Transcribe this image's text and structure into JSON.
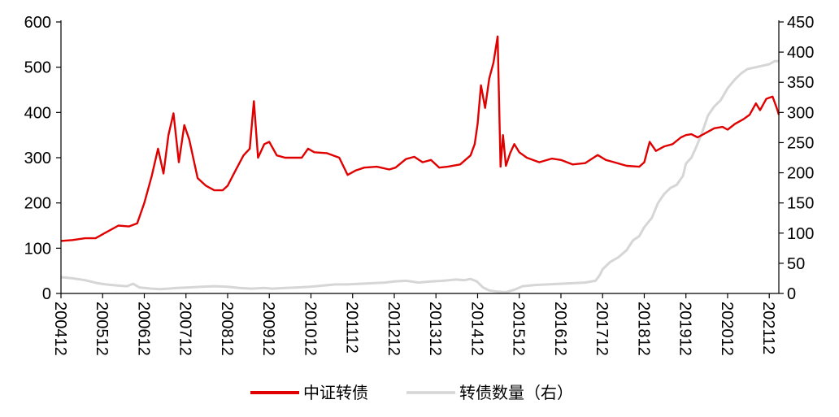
{
  "chart_data": {
    "type": "line",
    "title": "",
    "xlabel": "",
    "ylabel": "",
    "y2label": "",
    "x_ticks": [
      "200412",
      "200512",
      "200612",
      "200712",
      "200812",
      "200912",
      "201012",
      "201112",
      "201212",
      "201312",
      "201412",
      "201512",
      "201612",
      "201712",
      "201812",
      "201912",
      "202012",
      "202112"
    ],
    "ylim": [
      0,
      600
    ],
    "yticks": [
      0,
      100,
      200,
      300,
      400,
      500,
      600
    ],
    "y2lim": [
      0,
      450
    ],
    "y2ticks": [
      0,
      50,
      100,
      150,
      200,
      250,
      300,
      350,
      400,
      450
    ],
    "grid": false,
    "legend_position": "bottom",
    "series": [
      {
        "name": "中证转债",
        "axis": "left",
        "color": "#e00000",
        "points": [
          [
            2004.92,
            116
          ],
          [
            2005.2,
            118
          ],
          [
            2005.5,
            122
          ],
          [
            2005.75,
            122
          ],
          [
            2006.0,
            135
          ],
          [
            2006.3,
            150
          ],
          [
            2006.55,
            148
          ],
          [
            2006.75,
            155
          ],
          [
            2006.92,
            200
          ],
          [
            2007.1,
            260
          ],
          [
            2007.25,
            320
          ],
          [
            2007.38,
            265
          ],
          [
            2007.5,
            350
          ],
          [
            2007.62,
            398
          ],
          [
            2007.75,
            290
          ],
          [
            2007.88,
            372
          ],
          [
            2008.0,
            340
          ],
          [
            2008.2,
            255
          ],
          [
            2008.4,
            238
          ],
          [
            2008.6,
            228
          ],
          [
            2008.8,
            228
          ],
          [
            2008.92,
            238
          ],
          [
            2009.1,
            270
          ],
          [
            2009.3,
            305
          ],
          [
            2009.45,
            320
          ],
          [
            2009.55,
            425
          ],
          [
            2009.65,
            300
          ],
          [
            2009.8,
            330
          ],
          [
            2009.92,
            335
          ],
          [
            2010.1,
            305
          ],
          [
            2010.3,
            300
          ],
          [
            2010.5,
            300
          ],
          [
            2010.7,
            300
          ],
          [
            2010.85,
            320
          ],
          [
            2011.0,
            312
          ],
          [
            2011.3,
            310
          ],
          [
            2011.6,
            300
          ],
          [
            2011.8,
            262
          ],
          [
            2012.0,
            272
          ],
          [
            2012.2,
            278
          ],
          [
            2012.5,
            280
          ],
          [
            2012.8,
            274
          ],
          [
            2012.95,
            278
          ],
          [
            2013.2,
            297
          ],
          [
            2013.4,
            302
          ],
          [
            2013.6,
            290
          ],
          [
            2013.8,
            295
          ],
          [
            2014.0,
            278
          ],
          [
            2014.2,
            280
          ],
          [
            2014.5,
            285
          ],
          [
            2014.75,
            305
          ],
          [
            2014.85,
            330
          ],
          [
            2014.92,
            375
          ],
          [
            2015.0,
            460
          ],
          [
            2015.1,
            410
          ],
          [
            2015.2,
            475
          ],
          [
            2015.3,
            510
          ],
          [
            2015.4,
            568
          ],
          [
            2015.47,
            280
          ],
          [
            2015.53,
            350
          ],
          [
            2015.6,
            282
          ],
          [
            2015.7,
            310
          ],
          [
            2015.8,
            330
          ],
          [
            2015.92,
            312
          ],
          [
            2016.1,
            300
          ],
          [
            2016.4,
            290
          ],
          [
            2016.7,
            298
          ],
          [
            2016.92,
            295
          ],
          [
            2017.2,
            285
          ],
          [
            2017.5,
            288
          ],
          [
            2017.8,
            306
          ],
          [
            2018.0,
            295
          ],
          [
            2018.2,
            290
          ],
          [
            2018.5,
            282
          ],
          [
            2018.8,
            280
          ],
          [
            2018.92,
            290
          ],
          [
            2019.05,
            335
          ],
          [
            2019.2,
            315
          ],
          [
            2019.4,
            325
          ],
          [
            2019.6,
            330
          ],
          [
            2019.8,
            345
          ],
          [
            2019.92,
            350
          ],
          [
            2020.05,
            352
          ],
          [
            2020.2,
            345
          ],
          [
            2020.4,
            355
          ],
          [
            2020.6,
            365
          ],
          [
            2020.8,
            368
          ],
          [
            2020.92,
            362
          ],
          [
            2021.1,
            375
          ],
          [
            2021.3,
            385
          ],
          [
            2021.45,
            395
          ],
          [
            2021.6,
            420
          ],
          [
            2021.7,
            405
          ],
          [
            2021.85,
            430
          ],
          [
            2022.0,
            435
          ],
          [
            2022.1,
            410
          ],
          [
            2022.15,
            395
          ]
        ]
      },
      {
        "name": "转债数量（右）",
        "axis": "right",
        "color": "#d6d6d6",
        "points": [
          [
            2004.92,
            27
          ],
          [
            2005.2,
            25
          ],
          [
            2005.5,
            22
          ],
          [
            2005.8,
            17
          ],
          [
            2006.0,
            15
          ],
          [
            2006.3,
            13
          ],
          [
            2006.5,
            12
          ],
          [
            2006.65,
            16
          ],
          [
            2006.8,
            10
          ],
          [
            2007.1,
            8
          ],
          [
            2007.3,
            7
          ],
          [
            2007.5,
            8
          ],
          [
            2007.7,
            9
          ],
          [
            2008.0,
            10
          ],
          [
            2008.3,
            11
          ],
          [
            2008.6,
            12
          ],
          [
            2008.92,
            11
          ],
          [
            2009.2,
            9
          ],
          [
            2009.5,
            8
          ],
          [
            2009.8,
            9
          ],
          [
            2010.0,
            8
          ],
          [
            2010.3,
            9
          ],
          [
            2010.6,
            10
          ],
          [
            2010.9,
            11
          ],
          [
            2011.2,
            13
          ],
          [
            2011.5,
            15
          ],
          [
            2011.8,
            15
          ],
          [
            2012.1,
            16
          ],
          [
            2012.4,
            17
          ],
          [
            2012.7,
            18
          ],
          [
            2012.92,
            20
          ],
          [
            2013.2,
            21
          ],
          [
            2013.5,
            18
          ],
          [
            2013.8,
            20
          ],
          [
            2014.1,
            21
          ],
          [
            2014.4,
            23
          ],
          [
            2014.6,
            22
          ],
          [
            2014.75,
            24
          ],
          [
            2014.9,
            20
          ],
          [
            2015.05,
            10
          ],
          [
            2015.2,
            5
          ],
          [
            2015.4,
            3
          ],
          [
            2015.6,
            2
          ],
          [
            2015.8,
            6
          ],
          [
            2016.0,
            12
          ],
          [
            2016.3,
            14
          ],
          [
            2016.6,
            15
          ],
          [
            2016.9,
            16
          ],
          [
            2017.2,
            17
          ],
          [
            2017.5,
            18
          ],
          [
            2017.75,
            21
          ],
          [
            2017.85,
            30
          ],
          [
            2017.92,
            40
          ],
          [
            2018.1,
            52
          ],
          [
            2018.3,
            60
          ],
          [
            2018.5,
            72
          ],
          [
            2018.65,
            88
          ],
          [
            2018.8,
            95
          ],
          [
            2018.92,
            110
          ],
          [
            2019.1,
            125
          ],
          [
            2019.25,
            150
          ],
          [
            2019.4,
            165
          ],
          [
            2019.55,
            175
          ],
          [
            2019.7,
            180
          ],
          [
            2019.85,
            195
          ],
          [
            2019.92,
            215
          ],
          [
            2020.05,
            225
          ],
          [
            2020.15,
            240
          ],
          [
            2020.3,
            265
          ],
          [
            2020.45,
            295
          ],
          [
            2020.6,
            310
          ],
          [
            2020.75,
            320
          ],
          [
            2020.92,
            340
          ],
          [
            2021.1,
            355
          ],
          [
            2021.25,
            365
          ],
          [
            2021.4,
            372
          ],
          [
            2021.6,
            375
          ],
          [
            2021.8,
            378
          ],
          [
            2021.92,
            380
          ],
          [
            2022.05,
            385
          ],
          [
            2022.15,
            385
          ]
        ]
      }
    ]
  }
}
